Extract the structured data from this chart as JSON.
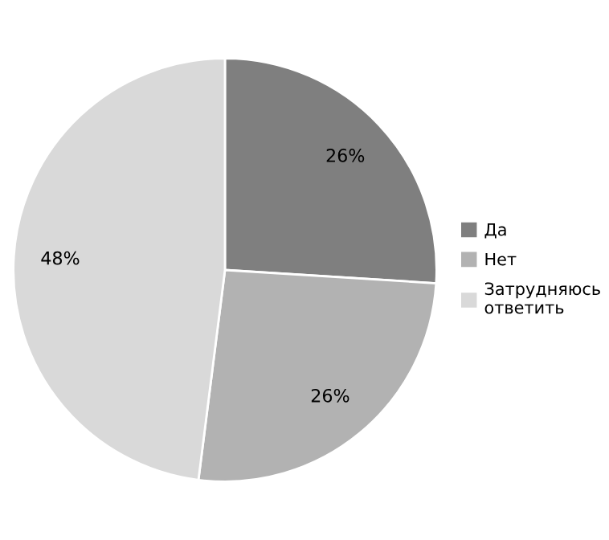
{
  "chart_data": {
    "type": "pie",
    "categories": [
      "Да",
      "Нет",
      "Затрудняюсь ответить"
    ],
    "values": [
      26,
      26,
      48
    ],
    "colors": [
      "#7f7f7f",
      "#b2b2b2",
      "#d9d9d9"
    ],
    "value_labels": [
      "26%",
      "26%",
      "48%"
    ],
    "legend": "right"
  }
}
